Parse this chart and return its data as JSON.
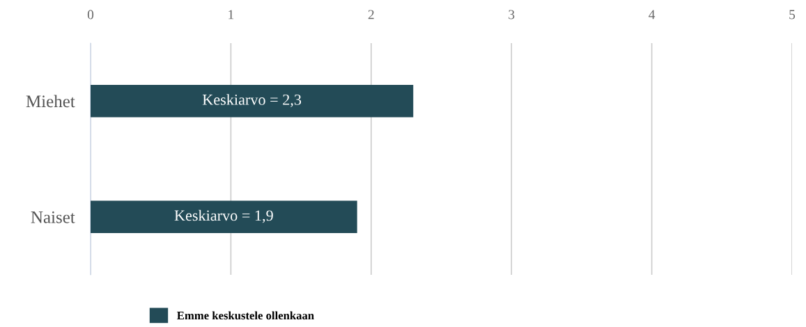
{
  "chart_data": {
    "type": "bar",
    "orientation": "horizontal",
    "categories": [
      "Miehet",
      "Naiset"
    ],
    "series": [
      {
        "name": "Emme keskustele ollenkaan",
        "color": "#234b57",
        "values": [
          2.3,
          1.9
        ],
        "value_labels": [
          "Keskiarvo = 2,3",
          "Keskiarvo = 1,9"
        ]
      }
    ],
    "xlim": [
      0,
      5
    ],
    "xticks": [
      0,
      1,
      2,
      3,
      4,
      5
    ],
    "grid": "x",
    "legend": "bottom"
  }
}
